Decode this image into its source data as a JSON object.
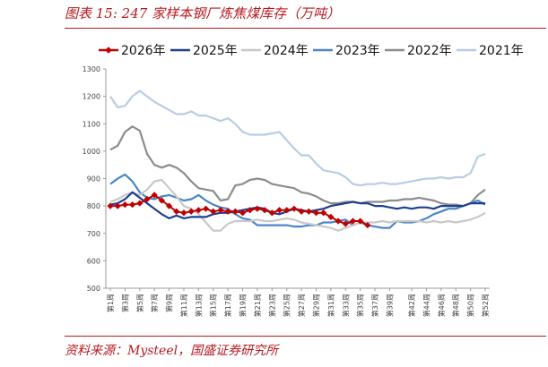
{
  "header": {
    "title": "图表 15:  247 家样本钢厂炼焦煤库存（万吨）"
  },
  "footer": {
    "source": "资料来源：Mysteel，国盛证券研究所"
  },
  "chart_data": {
    "type": "line",
    "title": "247 家样本钢厂炼焦煤库存（万吨）",
    "xlabel": "",
    "ylabel": "",
    "ylim": [
      500,
      1300
    ],
    "yticks": [
      500,
      600,
      700,
      800,
      900,
      1000,
      1100,
      1200,
      1300
    ],
    "grid": false,
    "legend_position": "top",
    "x": [
      "第1周",
      "第2周",
      "第3周",
      "第4周",
      "第5周",
      "第6周",
      "第7周",
      "第8周",
      "第9周",
      "第10周",
      "第11周",
      "第12周",
      "第13周",
      "第14周",
      "第15周",
      "第16周",
      "第17周",
      "第18周",
      "第19周",
      "第20周",
      "第21周",
      "第22周",
      "第23周",
      "第24周",
      "第25周",
      "第26周",
      "第27周",
      "第28周",
      "第29周",
      "第30周",
      "第31周",
      "第32周",
      "第33周",
      "第34周",
      "第35周",
      "第36周",
      "第37周",
      "第38周",
      "第39周",
      "第40周",
      "第41周",
      "第42周",
      "第43周",
      "第44周",
      "第45周",
      "第46周",
      "第47周",
      "第48周",
      "第49周",
      "第50周",
      "第51周",
      "第52周"
    ],
    "x_tick_labels": [
      "第1周",
      "第3周",
      "第5周",
      "第7周",
      "第9周",
      "第11周",
      "第13周",
      "第15周",
      "第17周",
      "第19周",
      "第21周",
      "第23周",
      "第25周",
      "第27周",
      "第29周",
      "第31周",
      "第33周",
      "第35周",
      "第37周",
      "第39周",
      "第42周",
      "第44周",
      "第46周",
      "第48周",
      "第50周",
      "第52周"
    ],
    "series": [
      {
        "name": "2026年",
        "color": "#c00000",
        "marker": "diamond",
        "values": [
          800,
          800,
          805,
          805,
          810,
          825,
          840,
          820,
          800,
          780,
          775,
          780,
          785,
          790,
          780,
          785,
          780,
          780,
          775,
          785,
          790,
          785,
          775,
          785,
          785,
          790,
          780,
          780,
          775,
          775,
          760,
          745,
          735,
          745,
          745,
          730,
          null,
          null,
          null,
          null,
          null,
          null,
          null,
          null,
          null,
          null,
          null,
          null,
          null,
          null,
          null,
          null
        ]
      },
      {
        "name": "2025年",
        "color": "#1f3f8f",
        "values": [
          805,
          810,
          825,
          850,
          830,
          810,
          790,
          770,
          755,
          765,
          755,
          760,
          760,
          760,
          770,
          775,
          775,
          780,
          785,
          790,
          795,
          790,
          775,
          770,
          780,
          790,
          785,
          780,
          785,
          790,
          800,
          805,
          810,
          815,
          810,
          810,
          800,
          800,
          795,
          790,
          795,
          790,
          795,
          795,
          790,
          800,
          800,
          800,
          800,
          810,
          810,
          810
        ]
      },
      {
        "name": "2024年",
        "color": "#c8c8c8",
        "values": [
          815,
          825,
          840,
          850,
          840,
          860,
          890,
          895,
          865,
          835,
          800,
          790,
          770,
          740,
          710,
          710,
          735,
          745,
          745,
          745,
          750,
          745,
          745,
          750,
          755,
          750,
          740,
          735,
          730,
          725,
          720,
          710,
          720,
          730,
          740,
          740,
          740,
          745,
          740,
          745,
          745,
          745,
          745,
          740,
          745,
          740,
          745,
          740,
          745,
          750,
          760,
          775
        ]
      },
      {
        "name": "2023年",
        "color": "#4a86c5",
        "values": [
          880,
          900,
          915,
          890,
          850,
          830,
          825,
          835,
          840,
          830,
          820,
          825,
          840,
          820,
          805,
          795,
          790,
          770,
          755,
          750,
          730,
          730,
          730,
          730,
          730,
          725,
          725,
          730,
          730,
          740,
          740,
          745,
          750,
          730,
          740,
          730,
          725,
          720,
          720,
          745,
          740,
          740,
          745,
          755,
          770,
          780,
          790,
          790,
          800,
          810,
          820,
          805
        ]
      },
      {
        "name": "2022年",
        "color": "#8c8c8c",
        "values": [
          1005,
          1020,
          1070,
          1090,
          1075,
          990,
          950,
          940,
          950,
          940,
          920,
          890,
          865,
          860,
          855,
          820,
          825,
          875,
          880,
          895,
          900,
          895,
          880,
          875,
          870,
          865,
          850,
          845,
          835,
          820,
          810,
          810,
          815,
          815,
          810,
          815,
          815,
          815,
          820,
          820,
          825,
          825,
          830,
          825,
          820,
          810,
          805,
          805,
          800,
          810,
          840,
          860
        ]
      },
      {
        "name": "2021年",
        "color": "#b8cce4",
        "values": [
          1200,
          1160,
          1165,
          1200,
          1220,
          1200,
          1180,
          1165,
          1150,
          1135,
          1135,
          1145,
          1130,
          1130,
          1120,
          1110,
          1120,
          1100,
          1070,
          1060,
          1060,
          1060,
          1065,
          1070,
          1040,
          1010,
          985,
          985,
          955,
          930,
          925,
          920,
          905,
          880,
          875,
          880,
          880,
          885,
          880,
          880,
          885,
          890,
          895,
          900,
          900,
          905,
          900,
          905,
          905,
          920,
          980,
          990
        ]
      }
    ]
  }
}
